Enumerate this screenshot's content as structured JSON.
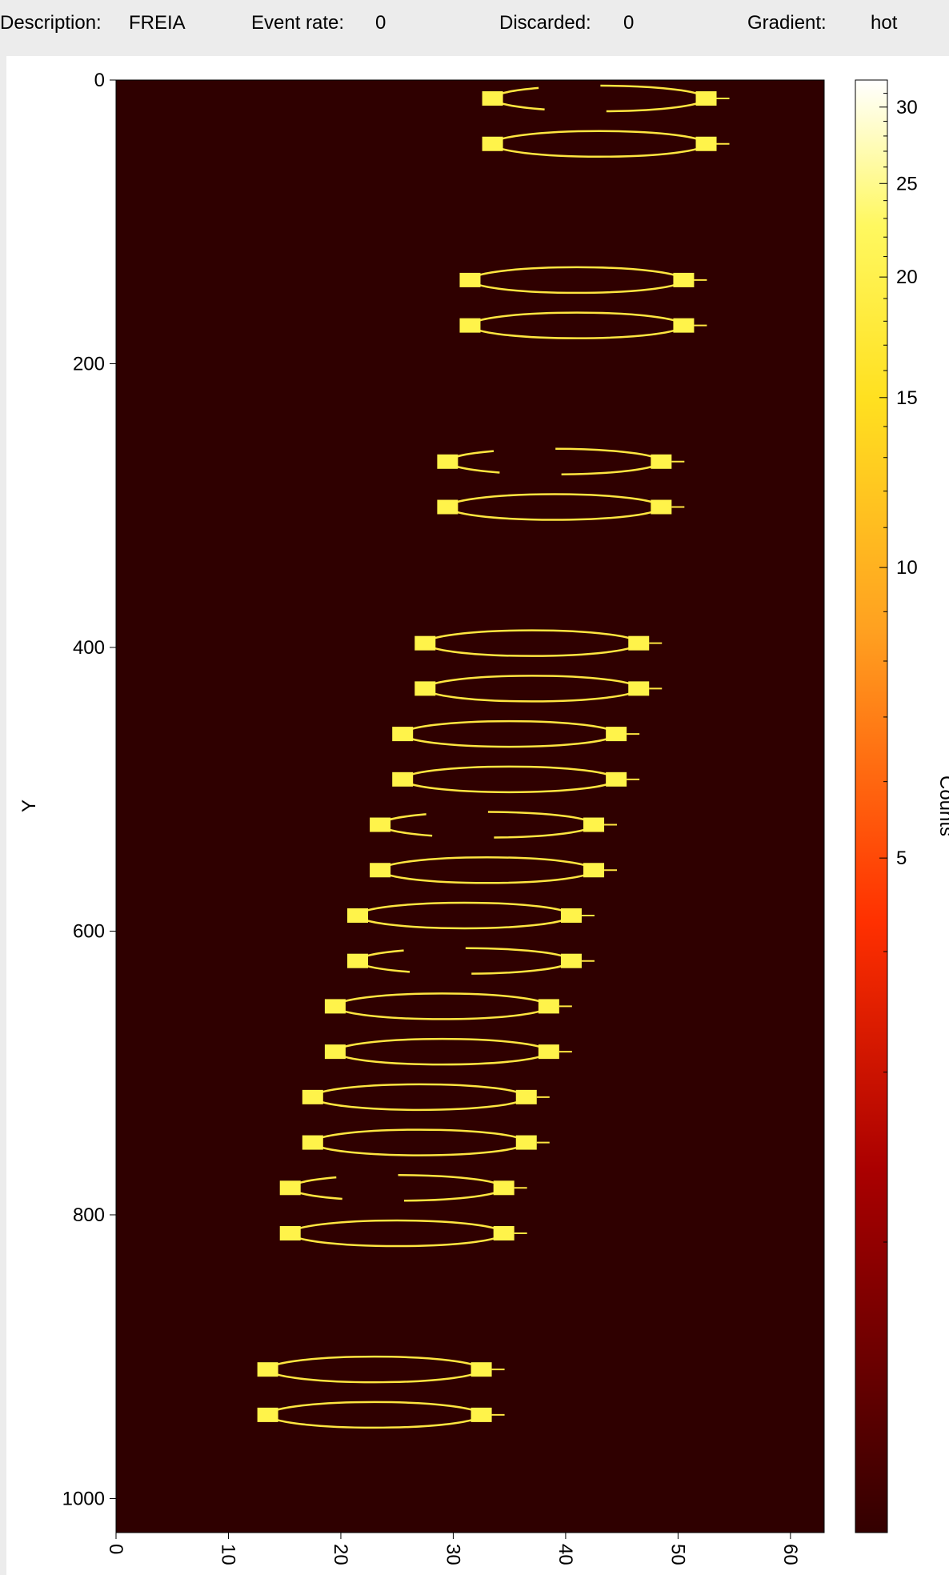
{
  "status_bar": {
    "description_label": "Description:",
    "description_value": "FREIA",
    "event_rate_label": "Event rate:",
    "event_rate_value": "0",
    "discarded_label": "Discarded:",
    "discarded_value": "0",
    "gradient_label": "Gradient:",
    "gradient_value": "hot"
  },
  "colors": {
    "background": "#2f0000",
    "hot_low": "#330000",
    "hot_high": "#ffffff"
  },
  "chart_data": {
    "type": "heatmap",
    "title": "",
    "xlabel": "",
    "ylabel": "Y",
    "colorbar_label": "Counts",
    "x_range": [
      0,
      63
    ],
    "y_range": [
      0,
      1024
    ],
    "y_inverted": true,
    "colorbar_scale": "log",
    "colorbar_range": [
      1,
      32
    ],
    "x_ticks": [
      "0",
      "10",
      "20",
      "30",
      "40",
      "50",
      "60"
    ],
    "y_ticks": [
      "0",
      "200",
      "400",
      "600",
      "800",
      "1000"
    ],
    "colorbar_ticks": [
      "30",
      "25",
      "20",
      "15",
      "10",
      "5"
    ],
    "rings": [
      {
        "y": 13,
        "x0": 33,
        "x1": 53,
        "gap": true
      },
      {
        "y": 45,
        "x0": 33,
        "x1": 53,
        "gap": false
      },
      {
        "y": 141,
        "x0": 31,
        "x1": 51,
        "gap": false
      },
      {
        "y": 173,
        "x0": 31,
        "x1": 51,
        "gap": false
      },
      {
        "y": 269,
        "x0": 29,
        "x1": 49,
        "gap": true
      },
      {
        "y": 301,
        "x0": 29,
        "x1": 49,
        "gap": false
      },
      {
        "y": 397,
        "x0": 27,
        "x1": 47,
        "gap": false
      },
      {
        "y": 429,
        "x0": 27,
        "x1": 47,
        "gap": false
      },
      {
        "y": 461,
        "x0": 25,
        "x1": 45,
        "gap": false
      },
      {
        "y": 493,
        "x0": 25,
        "x1": 45,
        "gap": false
      },
      {
        "y": 525,
        "x0": 23,
        "x1": 43,
        "gap": true
      },
      {
        "y": 557,
        "x0": 23,
        "x1": 43,
        "gap": false
      },
      {
        "y": 589,
        "x0": 21,
        "x1": 41,
        "gap": false
      },
      {
        "y": 621,
        "x0": 21,
        "x1": 41,
        "gap": true
      },
      {
        "y": 653,
        "x0": 19,
        "x1": 39,
        "gap": false
      },
      {
        "y": 685,
        "x0": 19,
        "x1": 39,
        "gap": false
      },
      {
        "y": 717,
        "x0": 17,
        "x1": 37,
        "gap": false
      },
      {
        "y": 749,
        "x0": 17,
        "x1": 37,
        "gap": false
      },
      {
        "y": 781,
        "x0": 15,
        "x1": 35,
        "gap": true
      },
      {
        "y": 813,
        "x0": 15,
        "x1": 35,
        "gap": false
      },
      {
        "y": 909,
        "x0": 13,
        "x1": 33,
        "gap": false
      },
      {
        "y": 941,
        "x0": 13,
        "x1": 33,
        "gap": false
      }
    ]
  }
}
